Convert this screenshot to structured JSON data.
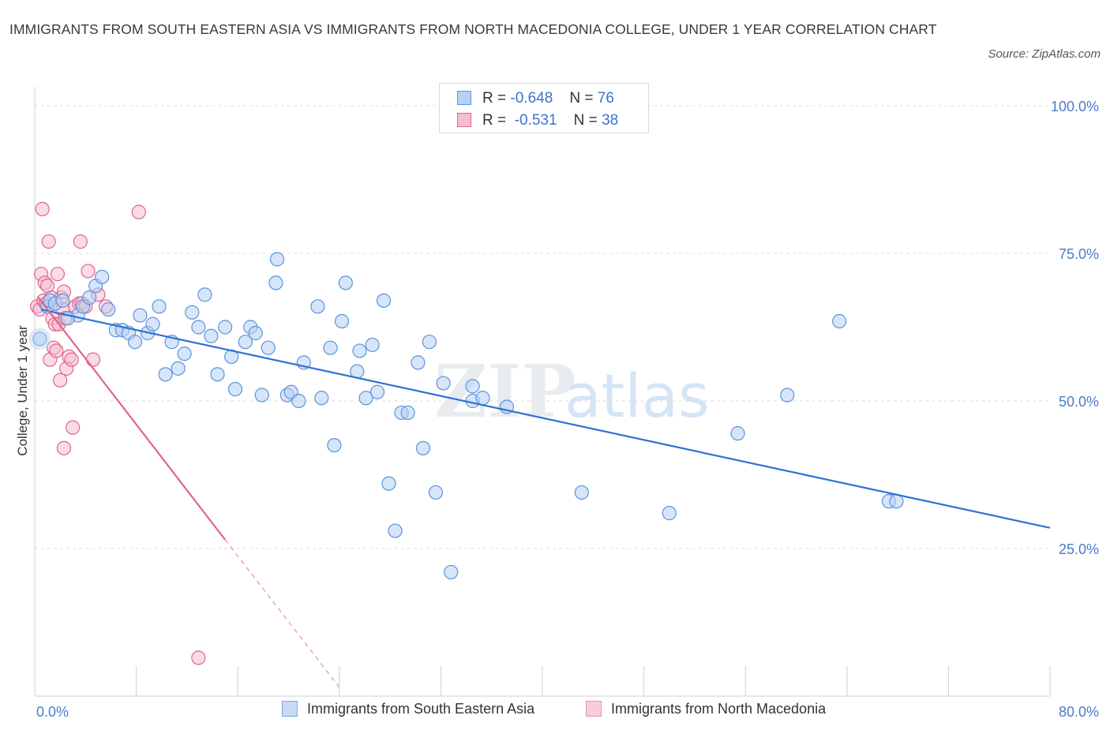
{
  "title": "IMMIGRANTS FROM SOUTH EASTERN ASIA VS IMMIGRANTS FROM NORTH MACEDONIA COLLEGE, UNDER 1 YEAR CORRELATION CHART",
  "source": "Source: ZipAtlas.com",
  "watermark": {
    "zip": "ZIP",
    "atlas": "atlas"
  },
  "colors": {
    "blue": "#5a93dd",
    "blue_fill": "#b7d0f3",
    "pink": "#e0648f",
    "pink_fill": "#f6bdd0",
    "axis_text": "#4a7cc9"
  },
  "legend": {
    "rows": [
      {
        "r_label": "R =",
        "r_value": "-0.648",
        "n_label": "N =",
        "n_value": "76"
      },
      {
        "r_label": "R =",
        "r_value": "-0.531",
        "n_label": "N =",
        "n_value": "38"
      }
    ]
  },
  "chart_data": {
    "type": "scatter",
    "title": "IMMIGRANTS FROM SOUTH EASTERN ASIA VS IMMIGRANTS FROM NORTH MACEDONIA COLLEGE, UNDER 1 YEAR CORRELATION CHART",
    "xlabel": "",
    "ylabel": "College, Under 1 year",
    "xlim": [
      0,
      80
    ],
    "ylim": [
      0,
      100
    ],
    "x_tick_labels": [
      "0.0%",
      "80.0%"
    ],
    "y_ticks": [
      {
        "value": 100,
        "label": "100.0%"
      },
      {
        "value": 75,
        "label": "75.0%"
      },
      {
        "value": 50,
        "label": "50.0%"
      },
      {
        "value": 25,
        "label": "25.0%"
      }
    ],
    "grid": true,
    "series": [
      {
        "name": "Immigrants from South Eastern Asia",
        "color": "#5a93dd",
        "trend": {
          "x": [
            0.5,
            80
          ],
          "y": [
            65.5,
            28.5
          ]
        },
        "points": [
          [
            0.4,
            60.5
          ],
          [
            1.0,
            66.0
          ],
          [
            1.2,
            67.0
          ],
          [
            1.6,
            66.5
          ],
          [
            2.2,
            67.0
          ],
          [
            3.4,
            64.5
          ],
          [
            3.8,
            66.0
          ],
          [
            4.3,
            67.5
          ],
          [
            4.8,
            69.5
          ],
          [
            5.3,
            71.0
          ],
          [
            5.8,
            65.5
          ],
          [
            6.4,
            62.0
          ],
          [
            6.9,
            62.0
          ],
          [
            7.4,
            61.5
          ],
          [
            7.9,
            60.0
          ],
          [
            8.3,
            64.5
          ],
          [
            8.9,
            61.5
          ],
          [
            9.3,
            63.0
          ],
          [
            9.8,
            66.0
          ],
          [
            10.3,
            54.5
          ],
          [
            10.8,
            60.0
          ],
          [
            11.3,
            55.5
          ],
          [
            11.8,
            58.0
          ],
          [
            12.4,
            65.0
          ],
          [
            12.9,
            62.5
          ],
          [
            13.4,
            68.0
          ],
          [
            13.9,
            61.0
          ],
          [
            14.4,
            54.5
          ],
          [
            15.0,
            62.5
          ],
          [
            15.5,
            57.5
          ],
          [
            15.8,
            52.0
          ],
          [
            16.6,
            60.0
          ],
          [
            17.0,
            62.5
          ],
          [
            17.4,
            61.5
          ],
          [
            17.9,
            51.0
          ],
          [
            18.4,
            59.0
          ],
          [
            19.1,
            74.0
          ],
          [
            19.0,
            70.0
          ],
          [
            19.9,
            51.0
          ],
          [
            20.2,
            51.5
          ],
          [
            20.8,
            50.0
          ],
          [
            21.2,
            56.5
          ],
          [
            22.3,
            66.0
          ],
          [
            22.6,
            50.5
          ],
          [
            23.3,
            59.0
          ],
          [
            23.6,
            42.5
          ],
          [
            24.2,
            63.5
          ],
          [
            24.5,
            70.0
          ],
          [
            25.4,
            55.0
          ],
          [
            25.6,
            58.5
          ],
          [
            26.1,
            50.5
          ],
          [
            26.6,
            59.5
          ],
          [
            27.0,
            51.5
          ],
          [
            27.5,
            67.0
          ],
          [
            27.9,
            36.0
          ],
          [
            28.4,
            28.0
          ],
          [
            28.9,
            48.0
          ],
          [
            29.4,
            48.0
          ],
          [
            30.2,
            56.5
          ],
          [
            30.6,
            42.0
          ],
          [
            31.1,
            60.0
          ],
          [
            31.6,
            34.5
          ],
          [
            32.2,
            53.0
          ],
          [
            32.8,
            21.0
          ],
          [
            34.5,
            52.5
          ],
          [
            34.5,
            50.0
          ],
          [
            35.3,
            50.5
          ],
          [
            37.2,
            49.0
          ],
          [
            43.1,
            34.5
          ],
          [
            50.0,
            31.0
          ],
          [
            55.4,
            44.5
          ],
          [
            59.3,
            51.0
          ],
          [
            63.4,
            63.5
          ],
          [
            67.3,
            33.0
          ],
          [
            67.9,
            33.0
          ],
          [
            2.6,
            64.0
          ]
        ]
      },
      {
        "name": "Immigrants from North Macedonia",
        "color": "#e0648f",
        "trend": {
          "x": [
            0.3,
            15.0,
            24.0
          ],
          "y": [
            67.5,
            26.5,
            1.5
          ]
        },
        "points": [
          [
            0.2,
            66.0
          ],
          [
            0.4,
            65.5
          ],
          [
            0.5,
            71.5
          ],
          [
            0.6,
            82.5
          ],
          [
            0.7,
            67.0
          ],
          [
            0.8,
            70.0
          ],
          [
            0.9,
            66.5
          ],
          [
            1.0,
            69.5
          ],
          [
            1.1,
            77.0
          ],
          [
            1.2,
            57.0
          ],
          [
            1.3,
            67.5
          ],
          [
            1.4,
            64.0
          ],
          [
            1.5,
            59.0
          ],
          [
            1.6,
            63.0
          ],
          [
            1.7,
            58.5
          ],
          [
            1.8,
            71.5
          ],
          [
            1.9,
            63.0
          ],
          [
            2.0,
            53.5
          ],
          [
            2.1,
            67.5
          ],
          [
            2.2,
            65.5
          ],
          [
            2.3,
            68.5
          ],
          [
            2.4,
            64.0
          ],
          [
            2.5,
            55.5
          ],
          [
            2.3,
            42.0
          ],
          [
            2.7,
            57.5
          ],
          [
            2.9,
            57.0
          ],
          [
            3.0,
            45.5
          ],
          [
            3.2,
            66.0
          ],
          [
            3.5,
            66.5
          ],
          [
            3.6,
            77.0
          ],
          [
            3.7,
            66.5
          ],
          [
            4.0,
            66.0
          ],
          [
            4.2,
            72.0
          ],
          [
            4.6,
            57.0
          ],
          [
            5.0,
            68.0
          ],
          [
            5.6,
            66.0
          ],
          [
            8.2,
            82.0
          ],
          [
            12.9,
            6.5
          ]
        ]
      }
    ]
  }
}
